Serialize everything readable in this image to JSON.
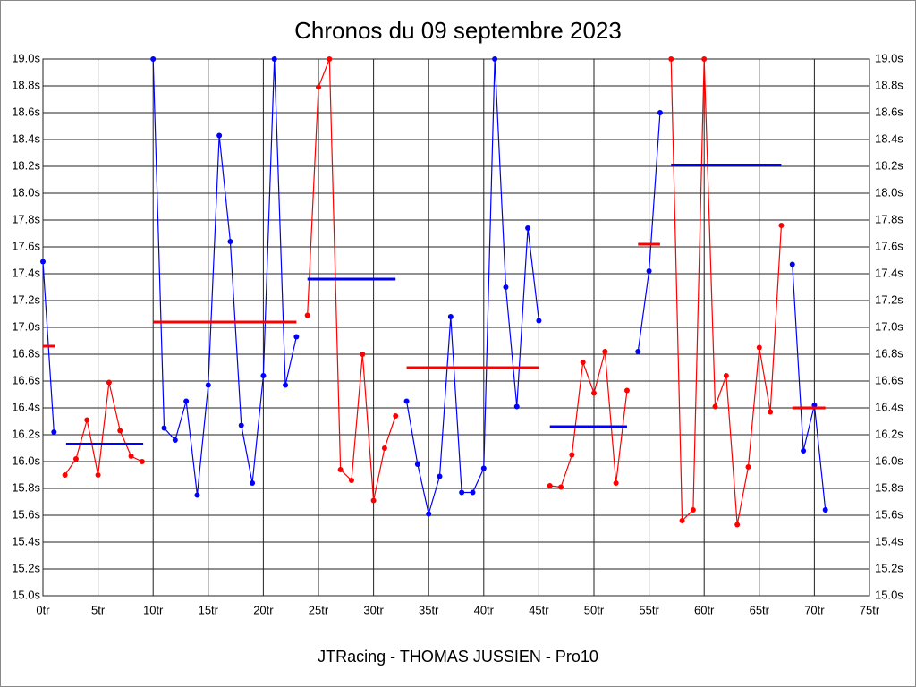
{
  "chart_data": {
    "type": "line",
    "title": "Chronos du 09 septembre 2023",
    "footer": "JTRacing - THOMAS JUSSIEN - Pro10",
    "xlim": [
      0,
      75
    ],
    "xticks": [
      {
        "value": 0,
        "label": "0tr"
      },
      {
        "value": 5,
        "label": "5tr"
      },
      {
        "value": 10,
        "label": "10tr"
      },
      {
        "value": 15,
        "label": "15tr"
      },
      {
        "value": 20,
        "label": "20tr"
      },
      {
        "value": 25,
        "label": "25tr"
      },
      {
        "value": 30,
        "label": "30tr"
      },
      {
        "value": 35,
        "label": "35tr"
      },
      {
        "value": 40,
        "label": "40tr"
      },
      {
        "value": 45,
        "label": "45tr"
      },
      {
        "value": 50,
        "label": "50tr"
      },
      {
        "value": 55,
        "label": "55tr"
      },
      {
        "value": 60,
        "label": "60tr"
      },
      {
        "value": 65,
        "label": "65tr"
      },
      {
        "value": 70,
        "label": "70tr"
      },
      {
        "value": 75,
        "label": "75tr"
      }
    ],
    "ylim": [
      15.0,
      19.0
    ],
    "yticks": [
      {
        "value": 15.0,
        "label": "15.0s"
      },
      {
        "value": 15.2,
        "label": "15.2s"
      },
      {
        "value": 15.4,
        "label": "15.4s"
      },
      {
        "value": 15.6,
        "label": "15.6s"
      },
      {
        "value": 15.8,
        "label": "15.8s"
      },
      {
        "value": 16.0,
        "label": "16.0s"
      },
      {
        "value": 16.2,
        "label": "16.2s"
      },
      {
        "value": 16.4,
        "label": "16.4s"
      },
      {
        "value": 16.6,
        "label": "16.6s"
      },
      {
        "value": 16.8,
        "label": "16.8s"
      },
      {
        "value": 17.0,
        "label": "17.0s"
      },
      {
        "value": 17.2,
        "label": "17.2s"
      },
      {
        "value": 17.4,
        "label": "17.4s"
      },
      {
        "value": 17.6,
        "label": "17.6s"
      },
      {
        "value": 17.8,
        "label": "17.8s"
      },
      {
        "value": 18.0,
        "label": "18.0s"
      },
      {
        "value": 18.2,
        "label": "18.2s"
      },
      {
        "value": 18.4,
        "label": "18.4s"
      },
      {
        "value": 18.6,
        "label": "18.6s"
      },
      {
        "value": 18.8,
        "label": "18.8s"
      },
      {
        "value": 19.0,
        "label": "19.0s"
      }
    ],
    "grid": true,
    "series": [
      {
        "color": "#0000ff",
        "x": [
          0,
          1
        ],
        "values": [
          17.49,
          16.22
        ]
      },
      {
        "color": "#ff0000",
        "x": [
          2,
          3,
          4,
          5,
          6,
          7,
          8,
          9
        ],
        "values": [
          15.9,
          16.02,
          16.31,
          15.9,
          16.59,
          16.23,
          16.04,
          16.0
        ]
      },
      {
        "color": "#0000ff",
        "x": [
          10,
          11,
          12,
          13,
          14,
          15,
          16,
          17,
          18,
          19,
          20,
          21,
          22,
          23
        ],
        "values": [
          19.0,
          16.25,
          16.16,
          16.45,
          15.75,
          16.57,
          18.43,
          17.64,
          16.27,
          15.84,
          16.64,
          19.0,
          16.57,
          16.93
        ]
      },
      {
        "color": "#ff0000",
        "x": [
          24,
          25,
          26,
          27,
          28,
          29,
          30,
          31,
          32
        ],
        "values": [
          17.09,
          18.79,
          19.0,
          15.94,
          15.86,
          16.8,
          15.71,
          16.1,
          16.34
        ]
      },
      {
        "color": "#0000ff",
        "x": [
          33,
          34,
          35,
          36,
          37,
          38,
          39,
          40,
          41,
          42,
          43,
          44,
          45
        ],
        "values": [
          16.45,
          15.98,
          15.61,
          15.89,
          17.08,
          15.77,
          15.77,
          15.95,
          19.0,
          17.3,
          16.41,
          17.74,
          17.05
        ]
      },
      {
        "color": "#ff0000",
        "x": [
          46,
          47,
          48,
          49,
          50,
          51,
          52,
          53
        ],
        "values": [
          15.82,
          15.81,
          16.05,
          16.74,
          16.51,
          16.82,
          15.84,
          16.53
        ]
      },
      {
        "color": "#0000ff",
        "x": [
          54,
          55,
          56
        ],
        "values": [
          16.82,
          17.42,
          18.6
        ]
      },
      {
        "color": "#ff0000",
        "x": [
          57,
          58,
          59,
          60,
          61,
          62,
          63,
          64,
          65,
          66,
          67
        ],
        "values": [
          19.0,
          15.56,
          15.64,
          19.0,
          16.41,
          16.64,
          15.53,
          15.96,
          16.85,
          16.37,
          17.76
        ]
      },
      {
        "color": "#0000ff",
        "x": [
          68,
          69,
          70,
          71
        ],
        "values": [
          17.47,
          16.08,
          16.42,
          15.64
        ]
      }
    ],
    "averages": [
      {
        "color": "#ff0000",
        "x": [
          0,
          1.1
        ],
        "value": 16.86
      },
      {
        "color": "#0000ff",
        "x": [
          2.1,
          9.1
        ],
        "value": 16.13
      },
      {
        "color": "#ff0000",
        "x": [
          10,
          23
        ],
        "value": 17.04
      },
      {
        "color": "#0000ff",
        "x": [
          24,
          32
        ],
        "value": 17.36
      },
      {
        "color": "#ff0000",
        "x": [
          33,
          45
        ],
        "value": 16.7
      },
      {
        "color": "#0000ff",
        "x": [
          46,
          53
        ],
        "value": 16.26
      },
      {
        "color": "#ff0000",
        "x": [
          54,
          56
        ],
        "value": 17.62
      },
      {
        "color": "#0000ff",
        "x": [
          57,
          67
        ],
        "value": 18.21
      },
      {
        "color": "#ff0000",
        "x": [
          68,
          71
        ],
        "value": 16.4
      }
    ]
  }
}
